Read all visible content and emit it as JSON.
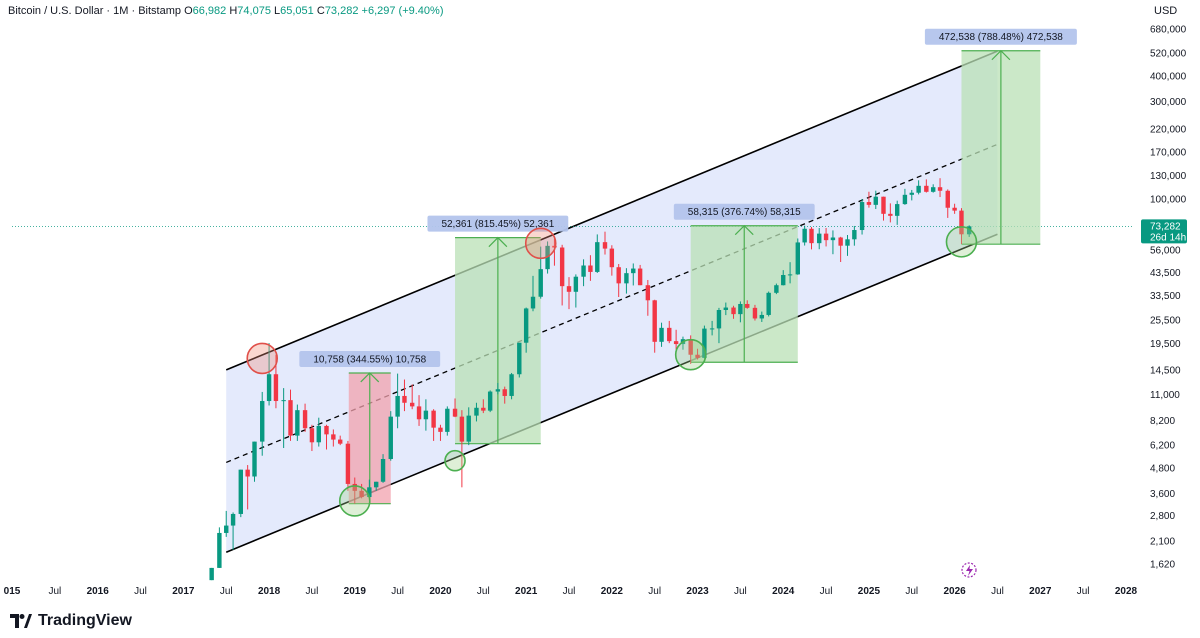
{
  "header": {
    "symbol": "Bitcoin / U.S. Dollar · 1M · Bitstamp",
    "o_label": "O",
    "o_value": "66,982",
    "h_label": "H",
    "h_value": "74,075",
    "l_label": "L",
    "l_value": "65,051",
    "c_label": "C",
    "c_value": "73,282",
    "change": "+6,297 (+9.40%)",
    "currency": "USD"
  },
  "brand": {
    "name": "TradingView"
  },
  "colors": {
    "up": "#089981",
    "down": "#f23645",
    "channel_fill": "#dfe6fb",
    "long_fill": "#b9e0b5",
    "short_fill": "#f2a2ad"
  },
  "chart_data": {
    "type": "candlestick",
    "scale": "log",
    "xlabel": "",
    "ylabel": "",
    "y_ticks": [
      1620,
      2100,
      2800,
      3600,
      4800,
      6200,
      8200,
      11000,
      14500,
      19500,
      25500,
      33500,
      43500,
      56000,
      73282,
      100000,
      130000,
      170000,
      220000,
      300000,
      400000,
      520000,
      680000
    ],
    "y_tick_labels": [
      "1,620",
      "2,100",
      "2,800",
      "3,600",
      "4,800",
      "6,200",
      "8,200",
      "11,000",
      "14,500",
      "19,500",
      "25,500",
      "33,500",
      "43,500",
      "56,000",
      "73,282",
      "100,000",
      "130,000",
      "170,000",
      "220,000",
      "300,000",
      "400,000",
      "520,000",
      "680,000"
    ],
    "x_ticks": [
      {
        "label": "015",
        "t": 2015.0,
        "year": true
      },
      {
        "label": "Jul",
        "t": 2015.5
      },
      {
        "label": "2016",
        "t": 2016.0,
        "year": true
      },
      {
        "label": "Jul",
        "t": 2016.5
      },
      {
        "label": "2017",
        "t": 2017.0,
        "year": true
      },
      {
        "label": "Jul",
        "t": 2017.5
      },
      {
        "label": "2018",
        "t": 2018.0,
        "year": true
      },
      {
        "label": "Jul",
        "t": 2018.5
      },
      {
        "label": "2019",
        "t": 2019.0,
        "year": true
      },
      {
        "label": "Jul",
        "t": 2019.5
      },
      {
        "label": "2020",
        "t": 2020.0,
        "year": true
      },
      {
        "label": "Jul",
        "t": 2020.5
      },
      {
        "label": "2021",
        "t": 2021.0,
        "year": true
      },
      {
        "label": "Jul",
        "t": 2021.5
      },
      {
        "label": "2022",
        "t": 2022.0,
        "year": true
      },
      {
        "label": "Jul",
        "t": 2022.5
      },
      {
        "label": "2023",
        "t": 2023.0,
        "year": true
      },
      {
        "label": "Jul",
        "t": 2023.5
      },
      {
        "label": "2024",
        "t": 2024.0,
        "year": true
      },
      {
        "label": "Jul",
        "t": 2024.5
      },
      {
        "label": "2025",
        "t": 2025.0,
        "year": true
      },
      {
        "label": "Jul",
        "t": 2025.5
      },
      {
        "label": "2026",
        "t": 2026.0,
        "year": true
      },
      {
        "label": "Jul",
        "t": 2026.5
      },
      {
        "label": "2027",
        "t": 2027.0,
        "year": true
      },
      {
        "label": "Jul",
        "t": 2027.5
      },
      {
        "label": "2028",
        "t": 2028.0,
        "year": true
      }
    ],
    "last_price": {
      "label": "73,282",
      "countdown": "26d 14h",
      "value": 73282
    },
    "candles": [
      {
        "t": 2017.33,
        "o": 1350,
        "h": 1550,
        "l": 1350,
        "c": 1550
      },
      {
        "t": 2017.42,
        "o": 1550,
        "h": 2450,
        "l": 1550,
        "c": 2300
      },
      {
        "t": 2017.5,
        "o": 2300,
        "h": 2950,
        "l": 2200,
        "c": 2500
      },
      {
        "t": 2017.58,
        "o": 2500,
        "h": 2900,
        "l": 1900,
        "c": 2850
      },
      {
        "t": 2017.67,
        "o": 2850,
        "h": 4700,
        "l": 2750,
        "c": 4700
      },
      {
        "t": 2017.75,
        "o": 4700,
        "h": 4950,
        "l": 3000,
        "c": 4350
      },
      {
        "t": 2017.83,
        "o": 4350,
        "h": 6450,
        "l": 4100,
        "c": 6450
      },
      {
        "t": 2017.92,
        "o": 6450,
        "h": 11300,
        "l": 5500,
        "c": 10200
      },
      {
        "t": 2018.0,
        "o": 10200,
        "h": 19600,
        "l": 9700,
        "c": 13800
      },
      {
        "t": 2018.08,
        "o": 13800,
        "h": 17200,
        "l": 9400,
        "c": 10200
      },
      {
        "t": 2018.17,
        "o": 10200,
        "h": 11800,
        "l": 6000,
        "c": 10300
      },
      {
        "t": 2018.25,
        "o": 10300,
        "h": 11600,
        "l": 6500,
        "c": 6900
      },
      {
        "t": 2018.33,
        "o": 6900,
        "h": 9800,
        "l": 6500,
        "c": 9200
      },
      {
        "t": 2018.42,
        "o": 9200,
        "h": 9900,
        "l": 7200,
        "c": 7500
      },
      {
        "t": 2018.5,
        "o": 7500,
        "h": 7800,
        "l": 5800,
        "c": 6400
      },
      {
        "t": 2018.58,
        "o": 6400,
        "h": 8450,
        "l": 6100,
        "c": 7700
      },
      {
        "t": 2018.67,
        "o": 7700,
        "h": 7800,
        "l": 5900,
        "c": 7000
      },
      {
        "t": 2018.75,
        "o": 7000,
        "h": 7400,
        "l": 6100,
        "c": 6600
      },
      {
        "t": 2018.83,
        "o": 6600,
        "h": 6900,
        "l": 6200,
        "c": 6300
      },
      {
        "t": 2018.92,
        "o": 6300,
        "h": 6500,
        "l": 3700,
        "c": 4000
      },
      {
        "t": 2019.0,
        "o": 4000,
        "h": 4300,
        "l": 3200,
        "c": 3700
      },
      {
        "t": 2019.08,
        "o": 3700,
        "h": 4000,
        "l": 3400,
        "c": 3450
      },
      {
        "t": 2019.17,
        "o": 3450,
        "h": 4200,
        "l": 3400,
        "c": 3850
      },
      {
        "t": 2019.25,
        "o": 3850,
        "h": 4100,
        "l": 3700,
        "c": 4100
      },
      {
        "t": 2019.33,
        "o": 4100,
        "h": 5600,
        "l": 4050,
        "c": 5300
      },
      {
        "t": 2019.42,
        "o": 5300,
        "h": 9100,
        "l": 5200,
        "c": 8550
      },
      {
        "t": 2019.5,
        "o": 8550,
        "h": 13900,
        "l": 7500,
        "c": 10800
      },
      {
        "t": 2019.58,
        "o": 10800,
        "h": 13000,
        "l": 9100,
        "c": 10000
      },
      {
        "t": 2019.67,
        "o": 10000,
        "h": 12300,
        "l": 9300,
        "c": 9600
      },
      {
        "t": 2019.75,
        "o": 9600,
        "h": 10900,
        "l": 7700,
        "c": 8300
      },
      {
        "t": 2019.83,
        "o": 8300,
        "h": 10400,
        "l": 7300,
        "c": 9150
      },
      {
        "t": 2019.92,
        "o": 9150,
        "h": 9300,
        "l": 6500,
        "c": 7550
      },
      {
        "t": 2020.0,
        "o": 7550,
        "h": 7800,
        "l": 6500,
        "c": 7200
      },
      {
        "t": 2020.08,
        "o": 7200,
        "h": 9600,
        "l": 6900,
        "c": 9350
      },
      {
        "t": 2020.17,
        "o": 9350,
        "h": 10500,
        "l": 8500,
        "c": 8550
      },
      {
        "t": 2020.25,
        "o": 8550,
        "h": 9200,
        "l": 3850,
        "c": 6450
      },
      {
        "t": 2020.33,
        "o": 6450,
        "h": 9500,
        "l": 6200,
        "c": 8650
      },
      {
        "t": 2020.42,
        "o": 8650,
        "h": 10000,
        "l": 8100,
        "c": 9450
      },
      {
        "t": 2020.5,
        "o": 9450,
        "h": 10400,
        "l": 8900,
        "c": 9150
      },
      {
        "t": 2020.58,
        "o": 9150,
        "h": 11500,
        "l": 9000,
        "c": 11350
      },
      {
        "t": 2020.67,
        "o": 11350,
        "h": 12500,
        "l": 11000,
        "c": 11650
      },
      {
        "t": 2020.75,
        "o": 11650,
        "h": 12000,
        "l": 9900,
        "c": 10800
      },
      {
        "t": 2020.83,
        "o": 10800,
        "h": 14000,
        "l": 10400,
        "c": 13800
      },
      {
        "t": 2020.92,
        "o": 13800,
        "h": 19500,
        "l": 13300,
        "c": 19700
      },
      {
        "t": 2021.0,
        "o": 19700,
        "h": 29300,
        "l": 17600,
        "c": 29000
      },
      {
        "t": 2021.08,
        "o": 29000,
        "h": 41900,
        "l": 28100,
        "c": 33100
      },
      {
        "t": 2021.17,
        "o": 33100,
        "h": 58300,
        "l": 32400,
        "c": 45200
      },
      {
        "t": 2021.25,
        "o": 45200,
        "h": 61800,
        "l": 43000,
        "c": 58800
      },
      {
        "t": 2021.33,
        "o": 58800,
        "h": 64800,
        "l": 47000,
        "c": 57700
      },
      {
        "t": 2021.42,
        "o": 57700,
        "h": 59500,
        "l": 30000,
        "c": 37300
      },
      {
        "t": 2021.5,
        "o": 37300,
        "h": 41300,
        "l": 28800,
        "c": 35000
      },
      {
        "t": 2021.58,
        "o": 35000,
        "h": 42600,
        "l": 29300,
        "c": 41500
      },
      {
        "t": 2021.67,
        "o": 41500,
        "h": 50500,
        "l": 37300,
        "c": 47100
      },
      {
        "t": 2021.75,
        "o": 47100,
        "h": 52900,
        "l": 39600,
        "c": 43800
      },
      {
        "t": 2021.83,
        "o": 43800,
        "h": 66900,
        "l": 43300,
        "c": 61300
      },
      {
        "t": 2021.92,
        "o": 61300,
        "h": 69000,
        "l": 53300,
        "c": 57000
      },
      {
        "t": 2022.0,
        "o": 57000,
        "h": 59200,
        "l": 42000,
        "c": 46200
      },
      {
        "t": 2022.08,
        "o": 46200,
        "h": 47900,
        "l": 33000,
        "c": 38500
      },
      {
        "t": 2022.17,
        "o": 38500,
        "h": 45700,
        "l": 34300,
        "c": 43200
      },
      {
        "t": 2022.25,
        "o": 43200,
        "h": 48200,
        "l": 37600,
        "c": 45500
      },
      {
        "t": 2022.33,
        "o": 45500,
        "h": 47400,
        "l": 37700,
        "c": 37700
      },
      {
        "t": 2022.42,
        "o": 37700,
        "h": 40000,
        "l": 26700,
        "c": 31800
      },
      {
        "t": 2022.5,
        "o": 31800,
        "h": 32000,
        "l": 17600,
        "c": 19900
      },
      {
        "t": 2022.58,
        "o": 19900,
        "h": 24700,
        "l": 18800,
        "c": 23300
      },
      {
        "t": 2022.67,
        "o": 23300,
        "h": 25200,
        "l": 19600,
        "c": 20050
      },
      {
        "t": 2022.75,
        "o": 20050,
        "h": 22800,
        "l": 18200,
        "c": 19400
      },
      {
        "t": 2022.83,
        "o": 19400,
        "h": 21100,
        "l": 18200,
        "c": 20500
      },
      {
        "t": 2022.92,
        "o": 20500,
        "h": 21400,
        "l": 15500,
        "c": 17200
      },
      {
        "t": 2023.0,
        "o": 17200,
        "h": 18400,
        "l": 16300,
        "c": 16600
      },
      {
        "t": 2023.08,
        "o": 16600,
        "h": 23900,
        "l": 16500,
        "c": 23100
      },
      {
        "t": 2023.17,
        "o": 23100,
        "h": 25200,
        "l": 21400,
        "c": 23150
      },
      {
        "t": 2023.25,
        "o": 23150,
        "h": 29200,
        "l": 19600,
        "c": 28500
      },
      {
        "t": 2023.33,
        "o": 28500,
        "h": 31000,
        "l": 26900,
        "c": 29300
      },
      {
        "t": 2023.42,
        "o": 29300,
        "h": 29900,
        "l": 25800,
        "c": 27200
      },
      {
        "t": 2023.5,
        "o": 27200,
        "h": 31400,
        "l": 24800,
        "c": 30500
      },
      {
        "t": 2023.58,
        "o": 30500,
        "h": 31800,
        "l": 28900,
        "c": 29200
      },
      {
        "t": 2023.67,
        "o": 29200,
        "h": 30200,
        "l": 25300,
        "c": 25900
      },
      {
        "t": 2023.75,
        "o": 25900,
        "h": 28000,
        "l": 24900,
        "c": 26950
      },
      {
        "t": 2023.83,
        "o": 26950,
        "h": 35100,
        "l": 26500,
        "c": 34600
      },
      {
        "t": 2023.92,
        "o": 34600,
        "h": 38400,
        "l": 34100,
        "c": 37700
      },
      {
        "t": 2024.0,
        "o": 37700,
        "h": 44700,
        "l": 37600,
        "c": 42300
      },
      {
        "t": 2024.08,
        "o": 42300,
        "h": 48900,
        "l": 38500,
        "c": 42600
      },
      {
        "t": 2024.17,
        "o": 42600,
        "h": 63900,
        "l": 42400,
        "c": 61100
      },
      {
        "t": 2024.25,
        "o": 61100,
        "h": 73800,
        "l": 59000,
        "c": 71300
      },
      {
        "t": 2024.33,
        "o": 71300,
        "h": 72700,
        "l": 56500,
        "c": 60600
      },
      {
        "t": 2024.42,
        "o": 60600,
        "h": 71900,
        "l": 56600,
        "c": 67500
      },
      {
        "t": 2024.5,
        "o": 67500,
        "h": 71900,
        "l": 58400,
        "c": 62700
      },
      {
        "t": 2024.58,
        "o": 62700,
        "h": 70000,
        "l": 53500,
        "c": 64600
      },
      {
        "t": 2024.67,
        "o": 64600,
        "h": 65100,
        "l": 49000,
        "c": 58900
      },
      {
        "t": 2024.75,
        "o": 58900,
        "h": 66500,
        "l": 52500,
        "c": 63300
      },
      {
        "t": 2024.83,
        "o": 63300,
        "h": 73600,
        "l": 58900,
        "c": 70300
      },
      {
        "t": 2024.92,
        "o": 70300,
        "h": 99800,
        "l": 66800,
        "c": 96400
      },
      {
        "t": 2025.0,
        "o": 96400,
        "h": 108300,
        "l": 90500,
        "c": 93400
      },
      {
        "t": 2025.08,
        "o": 93400,
        "h": 109600,
        "l": 89100,
        "c": 102400
      },
      {
        "t": 2025.17,
        "o": 102400,
        "h": 102500,
        "l": 78200,
        "c": 84400
      },
      {
        "t": 2025.25,
        "o": 84400,
        "h": 95000,
        "l": 76600,
        "c": 82500
      },
      {
        "t": 2025.33,
        "o": 82500,
        "h": 97900,
        "l": 74500,
        "c": 94200
      },
      {
        "t": 2025.42,
        "o": 94200,
        "h": 111900,
        "l": 93400,
        "c": 104600
      },
      {
        "t": 2025.5,
        "o": 104600,
        "h": 110500,
        "l": 98200,
        "c": 107100
      },
      {
        "t": 2025.58,
        "o": 107100,
        "h": 123200,
        "l": 105100,
        "c": 115800
      },
      {
        "t": 2025.67,
        "o": 115800,
        "h": 124500,
        "l": 107300,
        "c": 108200
      },
      {
        "t": 2025.75,
        "o": 108200,
        "h": 117800,
        "l": 107200,
        "c": 114000
      },
      {
        "t": 2025.83,
        "o": 114000,
        "h": 126200,
        "l": 102000,
        "c": 109500
      },
      {
        "t": 2025.92,
        "o": 109500,
        "h": 111200,
        "l": 80600,
        "c": 90400
      },
      {
        "t": 2026.0,
        "o": 90400,
        "h": 94600,
        "l": 84400,
        "c": 87500
      },
      {
        "t": 2026.08,
        "o": 87500,
        "h": 90000,
        "l": 60000,
        "c": 66982
      },
      {
        "t": 2026.17,
        "o": 66982,
        "h": 74075,
        "l": 65051,
        "c": 73282
      }
    ],
    "channel": {
      "upper": [
        {
          "t": 2017.5,
          "v": 14500
        },
        {
          "t": 2026.5,
          "v": 530000
        }
      ],
      "mid": [
        {
          "t": 2017.5,
          "v": 5100
        },
        {
          "t": 2026.5,
          "v": 185000
        }
      ],
      "lower": [
        {
          "t": 2017.5,
          "v": 1850
        },
        {
          "t": 2026.5,
          "v": 67000
        }
      ]
    },
    "measurements": [
      {
        "label": "10,758 (344.55%) 10,758",
        "t0": 2018.93,
        "t1": 2019.42,
        "v_base": 3200,
        "v_top": 14000,
        "positive": true,
        "fill": "short"
      },
      {
        "label": "52,361 (815.45%) 52,361",
        "t0": 2020.17,
        "t1": 2021.17,
        "v_base": 6300,
        "v_top": 64500,
        "positive": true,
        "fill": "long"
      },
      {
        "label": "58,315 (376.74%) 58,315",
        "t0": 2022.92,
        "t1": 2024.17,
        "v_base": 15800,
        "v_top": 73800,
        "positive": true,
        "fill": "long"
      },
      {
        "label": "472,538 (788.48%) 472,538",
        "t0": 2026.08,
        "t1": 2027.0,
        "v_base": 59900,
        "v_top": 532000,
        "positive": true,
        "fill": "long"
      }
    ],
    "circles": [
      {
        "t": 2017.92,
        "v": 16500,
        "color": "red"
      },
      {
        "t": 2019.0,
        "v": 3300,
        "color": "green"
      },
      {
        "t": 2020.17,
        "v": 5200,
        "color": "green"
      },
      {
        "t": 2021.17,
        "v": 60500,
        "color": "red"
      },
      {
        "t": 2022.92,
        "v": 17200,
        "color": "green"
      },
      {
        "t": 2026.08,
        "v": 61500,
        "color": "green"
      }
    ]
  }
}
